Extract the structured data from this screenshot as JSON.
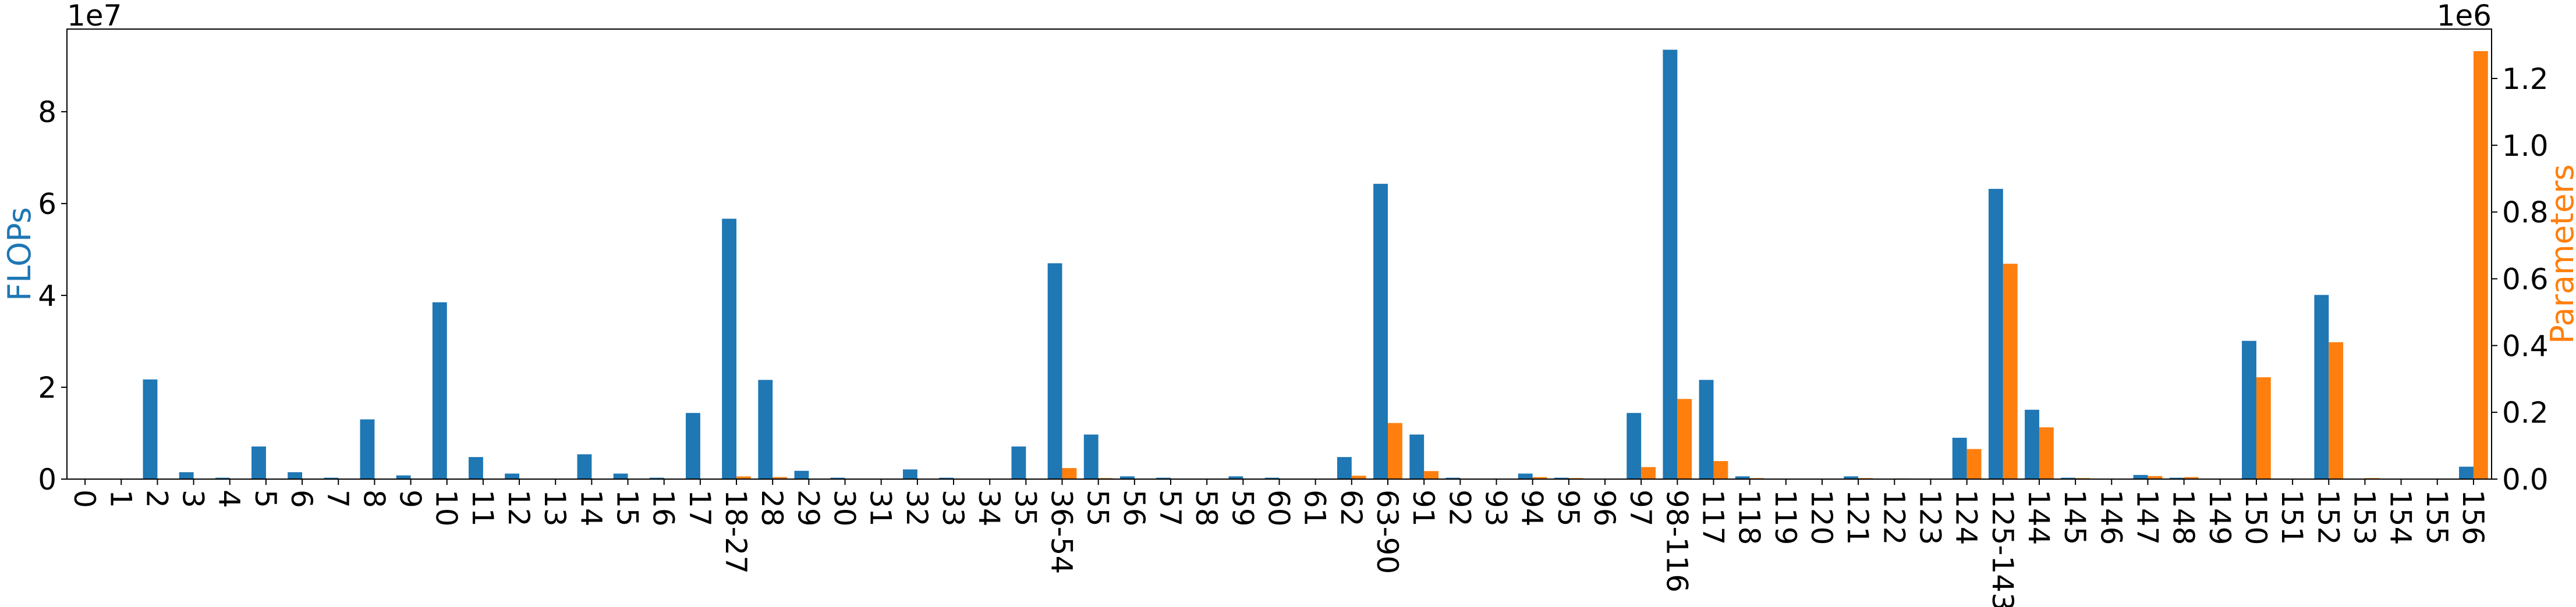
{
  "chart_data": {
    "type": "bar",
    "categories": [
      "0",
      "1",
      "2",
      "3",
      "4",
      "5",
      "6",
      "7",
      "8",
      "9",
      "10",
      "11",
      "12",
      "13",
      "14",
      "15",
      "16",
      "17",
      "18-27",
      "28",
      "29",
      "30",
      "31",
      "32",
      "33",
      "34",
      "35",
      "36-54",
      "55",
      "56",
      "57",
      "58",
      "59",
      "60",
      "61",
      "62",
      "63-90",
      "91",
      "92",
      "93",
      "94",
      "95",
      "96",
      "97",
      "98-116",
      "117",
      "118",
      "119",
      "120",
      "121",
      "122",
      "123",
      "124",
      "125-143",
      "144",
      "145",
      "146",
      "147",
      "148",
      "149",
      "150",
      "151",
      "152",
      "153",
      "154",
      "155",
      "156"
    ],
    "series": [
      {
        "name": "",
        "axis": "left",
        "color": "#1f77b4",
        "values": [
          0,
          0,
          21700000,
          1500000,
          300000,
          7100000,
          1500000,
          300000,
          13000000,
          800000,
          38500000,
          4800000,
          1200000,
          0,
          5400000,
          1200000,
          300000,
          14400000,
          56700000,
          21600000,
          1800000,
          300000,
          0,
          2100000,
          300000,
          0,
          7100000,
          47000000,
          9700000,
          600000,
          300000,
          0,
          600000,
          300000,
          0,
          4800000,
          64300000,
          9700000,
          300000,
          0,
          1200000,
          300000,
          0,
          14400000,
          93500000,
          21600000,
          600000,
          0,
          0,
          600000,
          0,
          0,
          9000000,
          63200000,
          15100000,
          300000,
          0,
          900000,
          300000,
          0,
          30100000,
          0,
          40100000,
          0,
          0,
          0,
          2700000
        ]
      },
      {
        "name": "",
        "axis": "right",
        "color": "#ff7f0e",
        "values": [
          0,
          0,
          0,
          0,
          0,
          0,
          0,
          0,
          0,
          0,
          0,
          0,
          0,
          0,
          0,
          0,
          0,
          0,
          8000,
          6000,
          0,
          0,
          0,
          0,
          0,
          0,
          0,
          33000,
          3000,
          0,
          0,
          0,
          0,
          0,
          0,
          10000,
          168000,
          24000,
          0,
          0,
          6000,
          3000,
          0,
          36000,
          240000,
          54000,
          3000,
          0,
          0,
          3000,
          2000,
          0,
          90000,
          645000,
          155000,
          3000,
          0,
          9000,
          6000,
          0,
          305000,
          0,
          410000,
          3000,
          0,
          0,
          1282000
        ]
      }
    ],
    "ylabel": "FLOPs",
    "y2label": "Parameters",
    "ylim": [
      0,
      98000000
    ],
    "y2lim": [
      0,
      1348000
    ],
    "yticks": [
      0,
      20000000,
      40000000,
      60000000,
      80000000
    ],
    "yticklabels": [
      "0",
      "2",
      "4",
      "6",
      "8"
    ],
    "y2ticks": [
      0,
      200000,
      400000,
      600000,
      800000,
      1000000,
      1200000
    ],
    "y2ticklabels": [
      "0.0",
      "0.2",
      "0.4",
      "0.6",
      "0.8",
      "1.0",
      "1.2"
    ],
    "yoffset_label": "1e7",
    "y2offset_label": "1e6",
    "grid": false,
    "legend": "none"
  }
}
